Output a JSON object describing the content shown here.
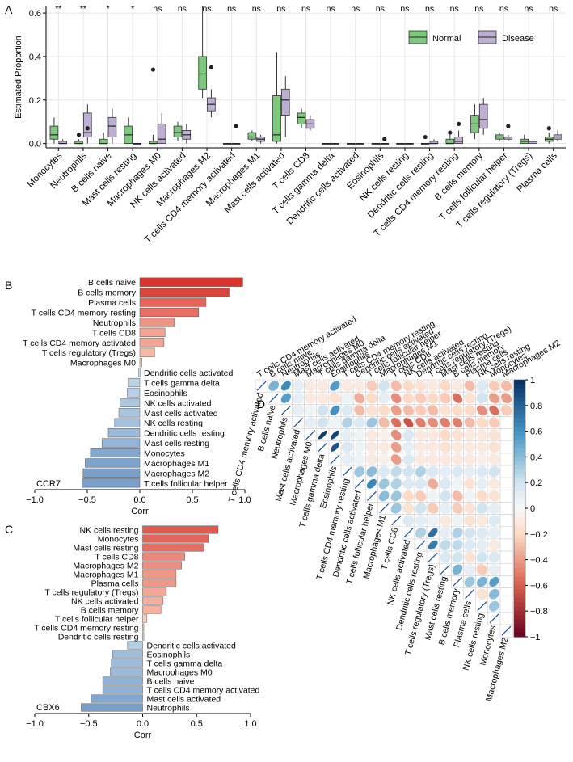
{
  "panels": {
    "a": "A",
    "b": "B",
    "c": "C",
    "d": "D"
  },
  "colors": {
    "normal": "#7fc97f",
    "disease": "#beaed4",
    "bar_pos": "#d73027",
    "bar_neg": "#4575b4",
    "grid": "#e6e6e6"
  },
  "chart_data": [
    {
      "id": "A",
      "type": "box",
      "ylabel": "Estimated Proportion",
      "ylim": [
        -0.02,
        0.63
      ],
      "yticks": [
        0.0,
        0.2,
        0.4,
        0.6
      ],
      "ytick_labels": [
        "0.0",
        "0.2",
        "0.4",
        "0.6"
      ],
      "legend": {
        "position": "top-right",
        "entries": [
          "Normal",
          "Disease"
        ]
      },
      "categories": [
        "Monocytes",
        "Neutrophils",
        "B cells naive",
        "Mast cells resting",
        "Macrophages M0",
        "NK cells activated",
        "Macrophages M2",
        "T cells CD4 memory activated",
        "Macrophages M1",
        "Mast cells activated",
        "T cells CD8",
        "T cells gamma delta",
        "Dendritic cells activated",
        "Eosinophils",
        "NK cells resting",
        "Dendritic cells resting",
        "T cells CD4 memory resting",
        "B cells memory",
        "T cells follicular helper",
        "T cells regulatory (Tregs)",
        "Plasma cells"
      ],
      "significance": [
        "**",
        "**",
        "*",
        "*",
        "ns",
        "ns",
        "ns",
        "ns",
        "ns",
        "ns",
        "ns",
        "ns",
        "ns",
        "ns",
        "ns",
        "ns",
        "ns",
        "ns",
        "ns",
        "ns",
        "ns"
      ],
      "series": [
        {
          "name": "Normal",
          "boxes": [
            [
              0.0,
              0.02,
              0.04,
              0.08,
              0.12
            ],
            [
              0.0,
              0.0,
              0.0,
              0.01,
              0.02
            ],
            [
              0.0,
              0.0,
              0.0,
              0.02,
              0.05
            ],
            [
              0.0,
              0.0,
              0.04,
              0.08,
              0.12
            ],
            [
              0.0,
              0.0,
              0.0,
              0.01,
              0.04
            ],
            [
              0.01,
              0.03,
              0.05,
              0.08,
              0.1
            ],
            [
              0.21,
              0.25,
              0.32,
              0.4,
              0.63
            ],
            [
              0.0,
              0.0,
              0.0,
              0.0,
              0.0
            ],
            [
              0.01,
              0.02,
              0.03,
              0.05,
              0.06
            ],
            [
              0.0,
              0.01,
              0.04,
              0.22,
              0.42
            ],
            [
              0.07,
              0.09,
              0.12,
              0.14,
              0.16
            ],
            [
              0.0,
              0.0,
              0.0,
              0.0,
              0.0
            ],
            [
              0.0,
              0.0,
              0.0,
              0.0,
              0.0
            ],
            [
              0.0,
              0.0,
              0.0,
              0.0,
              0.0
            ],
            [
              0.0,
              0.0,
              0.0,
              0.0,
              0.0
            ],
            [
              0.0,
              0.0,
              0.0,
              0.0,
              0.0
            ],
            [
              0.0,
              0.0,
              0.0,
              0.02,
              0.04
            ],
            [
              0.02,
              0.05,
              0.09,
              0.13,
              0.18
            ],
            [
              0.01,
              0.02,
              0.03,
              0.04,
              0.05
            ],
            [
              0.0,
              0.0,
              0.01,
              0.02,
              0.04
            ],
            [
              0.0,
              0.01,
              0.02,
              0.03,
              0.05
            ]
          ],
          "outliers": [
            [],
            [
              0.04
            ],
            [],
            [],
            [
              0.34
            ],
            [],
            [],
            [],
            [],
            [],
            [],
            [],
            [],
            [],
            [],
            [
              0.03
            ],
            [
              0.05
            ],
            [],
            [],
            [],
            [
              0.07
            ]
          ]
        },
        {
          "name": "Disease",
          "boxes": [
            [
              0.0,
              0.0,
              0.0,
              0.01,
              0.02
            ],
            [
              0.0,
              0.03,
              0.05,
              0.14,
              0.18
            ],
            [
              0.0,
              0.03,
              0.08,
              0.12,
              0.16
            ],
            [
              0.0,
              0.0,
              0.0,
              0.0,
              0.0
            ],
            [
              0.0,
              0.0,
              0.02,
              0.09,
              0.14
            ],
            [
              0.0,
              0.02,
              0.04,
              0.06,
              0.09
            ],
            [
              0.12,
              0.15,
              0.18,
              0.21,
              0.25
            ],
            [
              0.0,
              0.0,
              0.0,
              0.0,
              0.0
            ],
            [
              0.0,
              0.01,
              0.02,
              0.03,
              0.04
            ],
            [
              0.03,
              0.13,
              0.2,
              0.25,
              0.31
            ],
            [
              0.06,
              0.07,
              0.09,
              0.11,
              0.13
            ],
            [
              0.0,
              0.0,
              0.0,
              0.0,
              0.0
            ],
            [
              0.0,
              0.0,
              0.0,
              0.0,
              0.0
            ],
            [
              0.0,
              0.0,
              0.0,
              0.0,
              0.0
            ],
            [
              0.0,
              0.0,
              0.0,
              0.0,
              0.0
            ],
            [
              0.0,
              0.0,
              0.0,
              0.01,
              0.02
            ],
            [
              0.0,
              0.0,
              0.01,
              0.03,
              0.06
            ],
            [
              0.04,
              0.07,
              0.11,
              0.18,
              0.21
            ],
            [
              0.01,
              0.02,
              0.03,
              0.03,
              0.04
            ],
            [
              0.0,
              0.0,
              0.01,
              0.01,
              0.02
            ],
            [
              0.01,
              0.02,
              0.03,
              0.04,
              0.06
            ]
          ],
          "outliers": [
            [],
            [
              0.07
            ],
            [],
            [],
            [],
            [],
            [
              0.35
            ],
            [
              0.08
            ],
            [],
            [],
            [],
            [],
            [],
            [
              0.02
            ],
            [],
            [],
            [
              0.09
            ],
            [],
            [
              0.08
            ],
            [],
            []
          ]
        }
      ]
    },
    {
      "id": "B",
      "type": "bar",
      "orientation": "horizontal",
      "gene": "CCR7",
      "xlabel": "Corr",
      "xlim": [
        -1.0,
        1.0
      ],
      "xticks": [
        -1.0,
        -0.5,
        0.0,
        0.5,
        1.0
      ],
      "xtick_labels": [
        "−1.0",
        "−0.5",
        "0.0",
        "0.5",
        "1.0"
      ],
      "categories": [
        "B cells naive",
        "B cells memory",
        "Plasma cells",
        "T cells CD4 memory resting",
        "Neutrophils",
        "T cells CD8",
        "T cells CD4 memory activated",
        "T cells regulatory (Tregs)",
        "Macrophages M0",
        "Dendritic cells activated",
        "T cells gamma delta",
        "Eosinophils",
        "NK cells activated",
        "Mast cells activated",
        "NK cells resting",
        "Dendritic cells resting",
        "Mast cells resting",
        "Monocytes",
        "Macrophages M1",
        "Macrophages M2",
        "T cells follicular helper"
      ],
      "values": [
        0.98,
        0.85,
        0.63,
        0.56,
        0.33,
        0.24,
        0.23,
        0.14,
        0.02,
        -0.01,
        -0.11,
        -0.12,
        -0.19,
        -0.2,
        -0.24,
        -0.3,
        -0.36,
        -0.47,
        -0.52,
        -0.54,
        -0.55
      ]
    },
    {
      "id": "C",
      "type": "bar",
      "orientation": "horizontal",
      "gene": "CBX6",
      "xlabel": "Corr",
      "xlim": [
        -1.0,
        1.0
      ],
      "xticks": [
        -1.0,
        -0.5,
        0.0,
        0.5,
        1.0
      ],
      "xtick_labels": [
        "−1.0",
        "−0.5",
        "0.0",
        "0.5",
        "1.0"
      ],
      "categories": [
        "NK cells resting",
        "Monocytes",
        "Mast cells resting",
        "T cells CD8",
        "Macrophages M2",
        "Macrophages M1",
        "Plasma cells",
        "T cells regulatory (Tregs)",
        "NK cells activated",
        "B cells memory",
        "T cells follicular helper",
        "T cells CD4 memory resting",
        "Dendritic cells resting",
        "Dendritic cells activated",
        "Eosinophils",
        "T cells gamma delta",
        "Macrophages M0",
        "B cells naive",
        "T cells CD4 memory activated",
        "Mast cells activated",
        "Neutrophils"
      ],
      "values": [
        0.7,
        0.61,
        0.57,
        0.39,
        0.36,
        0.31,
        0.31,
        0.22,
        0.19,
        0.17,
        0.04,
        0.01,
        0.01,
        -0.14,
        -0.28,
        -0.29,
        -0.3,
        -0.37,
        -0.37,
        -0.48,
        -0.57
      ]
    },
    {
      "id": "D",
      "type": "heatmap",
      "subtype": "correlation-ellipse-upper",
      "labels": [
        "T cells CD4 memory activated",
        "B cells naive",
        "Neutrophils",
        "Mast cells activated",
        "Macrophages M0",
        "T cells gamma delta",
        "Eosinophils",
        "T cells CD4 memory resting",
        "Dendritic cells activated",
        "T cells follicular helper",
        "Macrophages M1",
        "T cells CD8",
        "NK cells activated",
        "Dendritic cells resting",
        "T cells regulatory (Tregs)",
        "Mast cells resting",
        "B cells memory",
        "Plasma cells",
        "NK cells resting",
        "Monocytes",
        "Macrophages M2"
      ],
      "colorbar": {
        "ticks": [
          1,
          0.8,
          0.6,
          0.4,
          0.2,
          0,
          -0.2,
          -0.4,
          -0.6,
          -0.8,
          -1
        ],
        "tick_labels": [
          "1",
          "0.8",
          "0.6",
          "0.4",
          "0.2",
          "0",
          "−0.2",
          "−0.4",
          "−0.6",
          "−0.8",
          "−1"
        ],
        "range": [
          -1,
          1
        ]
      },
      "upper_rows": [
        [
          0.45,
          0.65,
          0.1,
          -0.1,
          -0.1,
          0.55,
          -0.1,
          -0.1,
          -0.25,
          0.2,
          -0.3,
          -0.2,
          -0.15,
          -0.1,
          -0.2,
          -0.1,
          -0.3,
          0.15,
          -0.25,
          -0.3
        ],
        [
          0.55,
          0.1,
          -0.1,
          -0.1,
          -0.15,
          0.05,
          -0.35,
          -0.2,
          0.1,
          -0.45,
          -0.2,
          -0.25,
          -0.2,
          -0.25,
          -0.55,
          -0.15,
          0.2,
          -0.4,
          -0.4
        ],
        [
          0.1,
          0.05,
          0.2,
          0.6,
          0.15,
          -0.3,
          -0.15,
          -0.2,
          -0.4,
          -0.3,
          -0.25,
          -0.3,
          -0.15,
          -0.2,
          -0.2,
          -0.45,
          -0.55,
          -0.25
        ],
        [
          0.1,
          0.2,
          0.05,
          0.3,
          0.15,
          0.35,
          -0.3,
          -0.55,
          -0.65,
          -0.5,
          -0.45,
          -0.5,
          -0.5,
          -0.3,
          -0.2,
          -0.25
        ],
        [
          0.95,
          0.9,
          0.1,
          0.05,
          -0.1,
          -0.05,
          -0.45,
          0.15,
          -0.1,
          -0.1,
          -0.2,
          -0.15,
          -0.1,
          -0.1,
          -0.15
        ],
        [
          0.85,
          0.15,
          0.05,
          -0.1,
          -0.1,
          -0.4,
          0.1,
          -0.1,
          -0.1,
          -0.15,
          -0.1,
          -0.1,
          -0.1,
          -0.15
        ],
        [
          0.1,
          0.05,
          -0.1,
          -0.05,
          -0.4,
          0.15,
          -0.1,
          -0.1,
          -0.1,
          -0.1,
          -0.1,
          -0.05,
          -0.1
        ],
        [
          0.35,
          0.4,
          0.15,
          0.25,
          0.2,
          0.3,
          0.15,
          0.1,
          0.15,
          0.1,
          0.15,
          0.2
        ],
        [
          0.65,
          0.35,
          0.3,
          0.15,
          0.15,
          -0.35,
          0.15,
          0.05,
          -0.15,
          0.1,
          -0.1
        ],
        [
          0.4,
          0.35,
          -0.2,
          -0.25,
          0.05,
          0.2,
          -0.3,
          0.05,
          -0.2,
          -0.15
        ],
        [
          0.35,
          -0.15,
          0.2,
          -0.25,
          0.1,
          -0.25,
          -0.15,
          0.2,
          0.1
        ],
        [
          0.15,
          0.1,
          0.05,
          -0.1,
          0.05,
          -0.15,
          -0.1,
          0.15
        ],
        [
          0.3,
          0.75,
          0.1,
          0.3,
          0.2,
          0.15,
          0.1
        ],
        [
          0.7,
          0.25,
          0.25,
          0.15,
          0.1,
          -0.1
        ],
        [
          0.15,
          0.2,
          -0.15,
          0.2,
          0.15
        ],
        [
          0.45,
          0.1,
          -0.25,
          0.1
        ],
        [
          0.35,
          0.45,
          0.55
        ],
        [
          -0.15,
          0.4
        ],
        [
          0.35
        ],
        []
      ]
    }
  ]
}
